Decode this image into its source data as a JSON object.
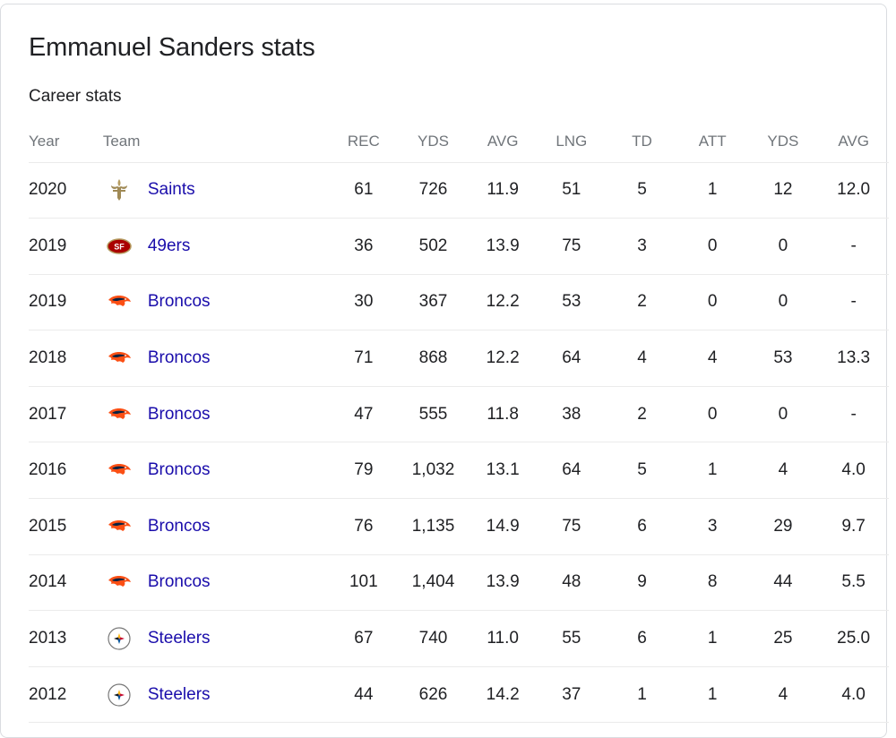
{
  "title": "Emmanuel Sanders stats",
  "subtitle": "Career stats",
  "columns": [
    "Year",
    "Team",
    "REC",
    "YDS",
    "AVG",
    "LNG",
    "TD",
    "ATT",
    "YDS",
    "AVG"
  ],
  "rows": [
    {
      "year": "2020",
      "team": "Saints",
      "logo": "saints-logo-icon",
      "rec": "61",
      "yds": "726",
      "avg": "11.9",
      "lng": "51",
      "td": "5",
      "att": "1",
      "ryds": "12",
      "ravg": "12.0"
    },
    {
      "year": "2019",
      "team": "49ers",
      "logo": "49ers-logo-icon",
      "rec": "36",
      "yds": "502",
      "avg": "13.9",
      "lng": "75",
      "td": "3",
      "att": "0",
      "ryds": "0",
      "ravg": "-"
    },
    {
      "year": "2019",
      "team": "Broncos",
      "logo": "broncos-logo-icon",
      "rec": "30",
      "yds": "367",
      "avg": "12.2",
      "lng": "53",
      "td": "2",
      "att": "0",
      "ryds": "0",
      "ravg": "-"
    },
    {
      "year": "2018",
      "team": "Broncos",
      "logo": "broncos-logo-icon",
      "rec": "71",
      "yds": "868",
      "avg": "12.2",
      "lng": "64",
      "td": "4",
      "att": "4",
      "ryds": "53",
      "ravg": "13.3"
    },
    {
      "year": "2017",
      "team": "Broncos",
      "logo": "broncos-logo-icon",
      "rec": "47",
      "yds": "555",
      "avg": "11.8",
      "lng": "38",
      "td": "2",
      "att": "0",
      "ryds": "0",
      "ravg": "-"
    },
    {
      "year": "2016",
      "team": "Broncos",
      "logo": "broncos-logo-icon",
      "rec": "79",
      "yds": "1,032",
      "avg": "13.1",
      "lng": "64",
      "td": "5",
      "att": "1",
      "ryds": "4",
      "ravg": "4.0"
    },
    {
      "year": "2015",
      "team": "Broncos",
      "logo": "broncos-logo-icon",
      "rec": "76",
      "yds": "1,135",
      "avg": "14.9",
      "lng": "75",
      "td": "6",
      "att": "3",
      "ryds": "29",
      "ravg": "9.7"
    },
    {
      "year": "2014",
      "team": "Broncos",
      "logo": "broncos-logo-icon",
      "rec": "101",
      "yds": "1,404",
      "avg": "13.9",
      "lng": "48",
      "td": "9",
      "att": "8",
      "ryds": "44",
      "ravg": "5.5"
    },
    {
      "year": "2013",
      "team": "Steelers",
      "logo": "steelers-logo-icon",
      "rec": "67",
      "yds": "740",
      "avg": "11.0",
      "lng": "55",
      "td": "6",
      "att": "1",
      "ryds": "25",
      "ravg": "25.0"
    },
    {
      "year": "2012",
      "team": "Steelers",
      "logo": "steelers-logo-icon",
      "rec": "44",
      "yds": "626",
      "avg": "14.2",
      "lng": "37",
      "td": "1",
      "att": "1",
      "ryds": "4",
      "ravg": "4.0"
    }
  ],
  "colors": {
    "link": "#1a0dab",
    "header_text": "#70757a",
    "text": "#202124",
    "divider": "#ebebeb"
  }
}
